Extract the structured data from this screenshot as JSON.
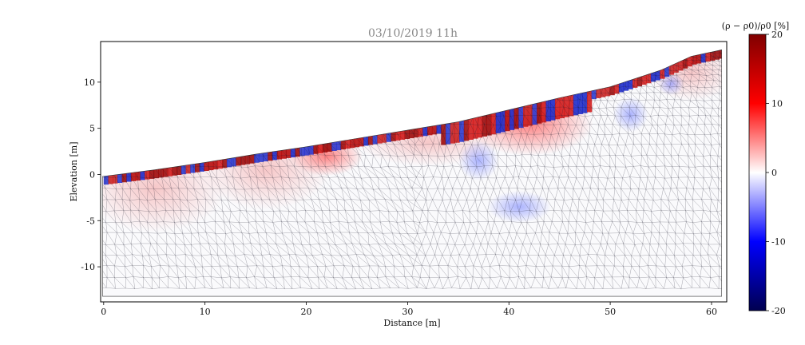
{
  "chart_data": {
    "type": "heatmap",
    "title": "03/10/2019 11h",
    "xlabel": "Distance [m]",
    "ylabel": "Elevation [m]",
    "xlim": [
      -0.3,
      61.5
    ],
    "ylim": [
      -13.8,
      14.4
    ],
    "xticks": [
      0,
      10,
      20,
      30,
      40,
      50,
      60
    ],
    "yticks": [
      -10,
      -5,
      0,
      5,
      10
    ],
    "surface_profile": [
      {
        "x": 0,
        "y": -0.2
      },
      {
        "x": 5,
        "y": 0.5
      },
      {
        "x": 10,
        "y": 1.3
      },
      {
        "x": 15,
        "y": 2.2
      },
      {
        "x": 20,
        "y": 3.0
      },
      {
        "x": 25,
        "y": 3.9
      },
      {
        "x": 30,
        "y": 4.8
      },
      {
        "x": 35,
        "y": 5.7
      },
      {
        "x": 40,
        "y": 7.0
      },
      {
        "x": 45,
        "y": 8.3
      },
      {
        "x": 50,
        "y": 9.5
      },
      {
        "x": 55,
        "y": 11.3
      },
      {
        "x": 58,
        "y": 12.8
      },
      {
        "x": 61,
        "y": 13.5
      }
    ],
    "colorbar": {
      "label": "(ρ − ρ0)/ρ0 [%]",
      "range": [
        -20,
        20
      ],
      "ticks": [
        20,
        10,
        0,
        -10,
        -20
      ],
      "colormap": "seismic"
    }
  },
  "colors": {
    "positive": "#8b0000",
    "neutral": "#ffffff",
    "negative": "#00008b",
    "mesh": "#1a1a2e"
  }
}
